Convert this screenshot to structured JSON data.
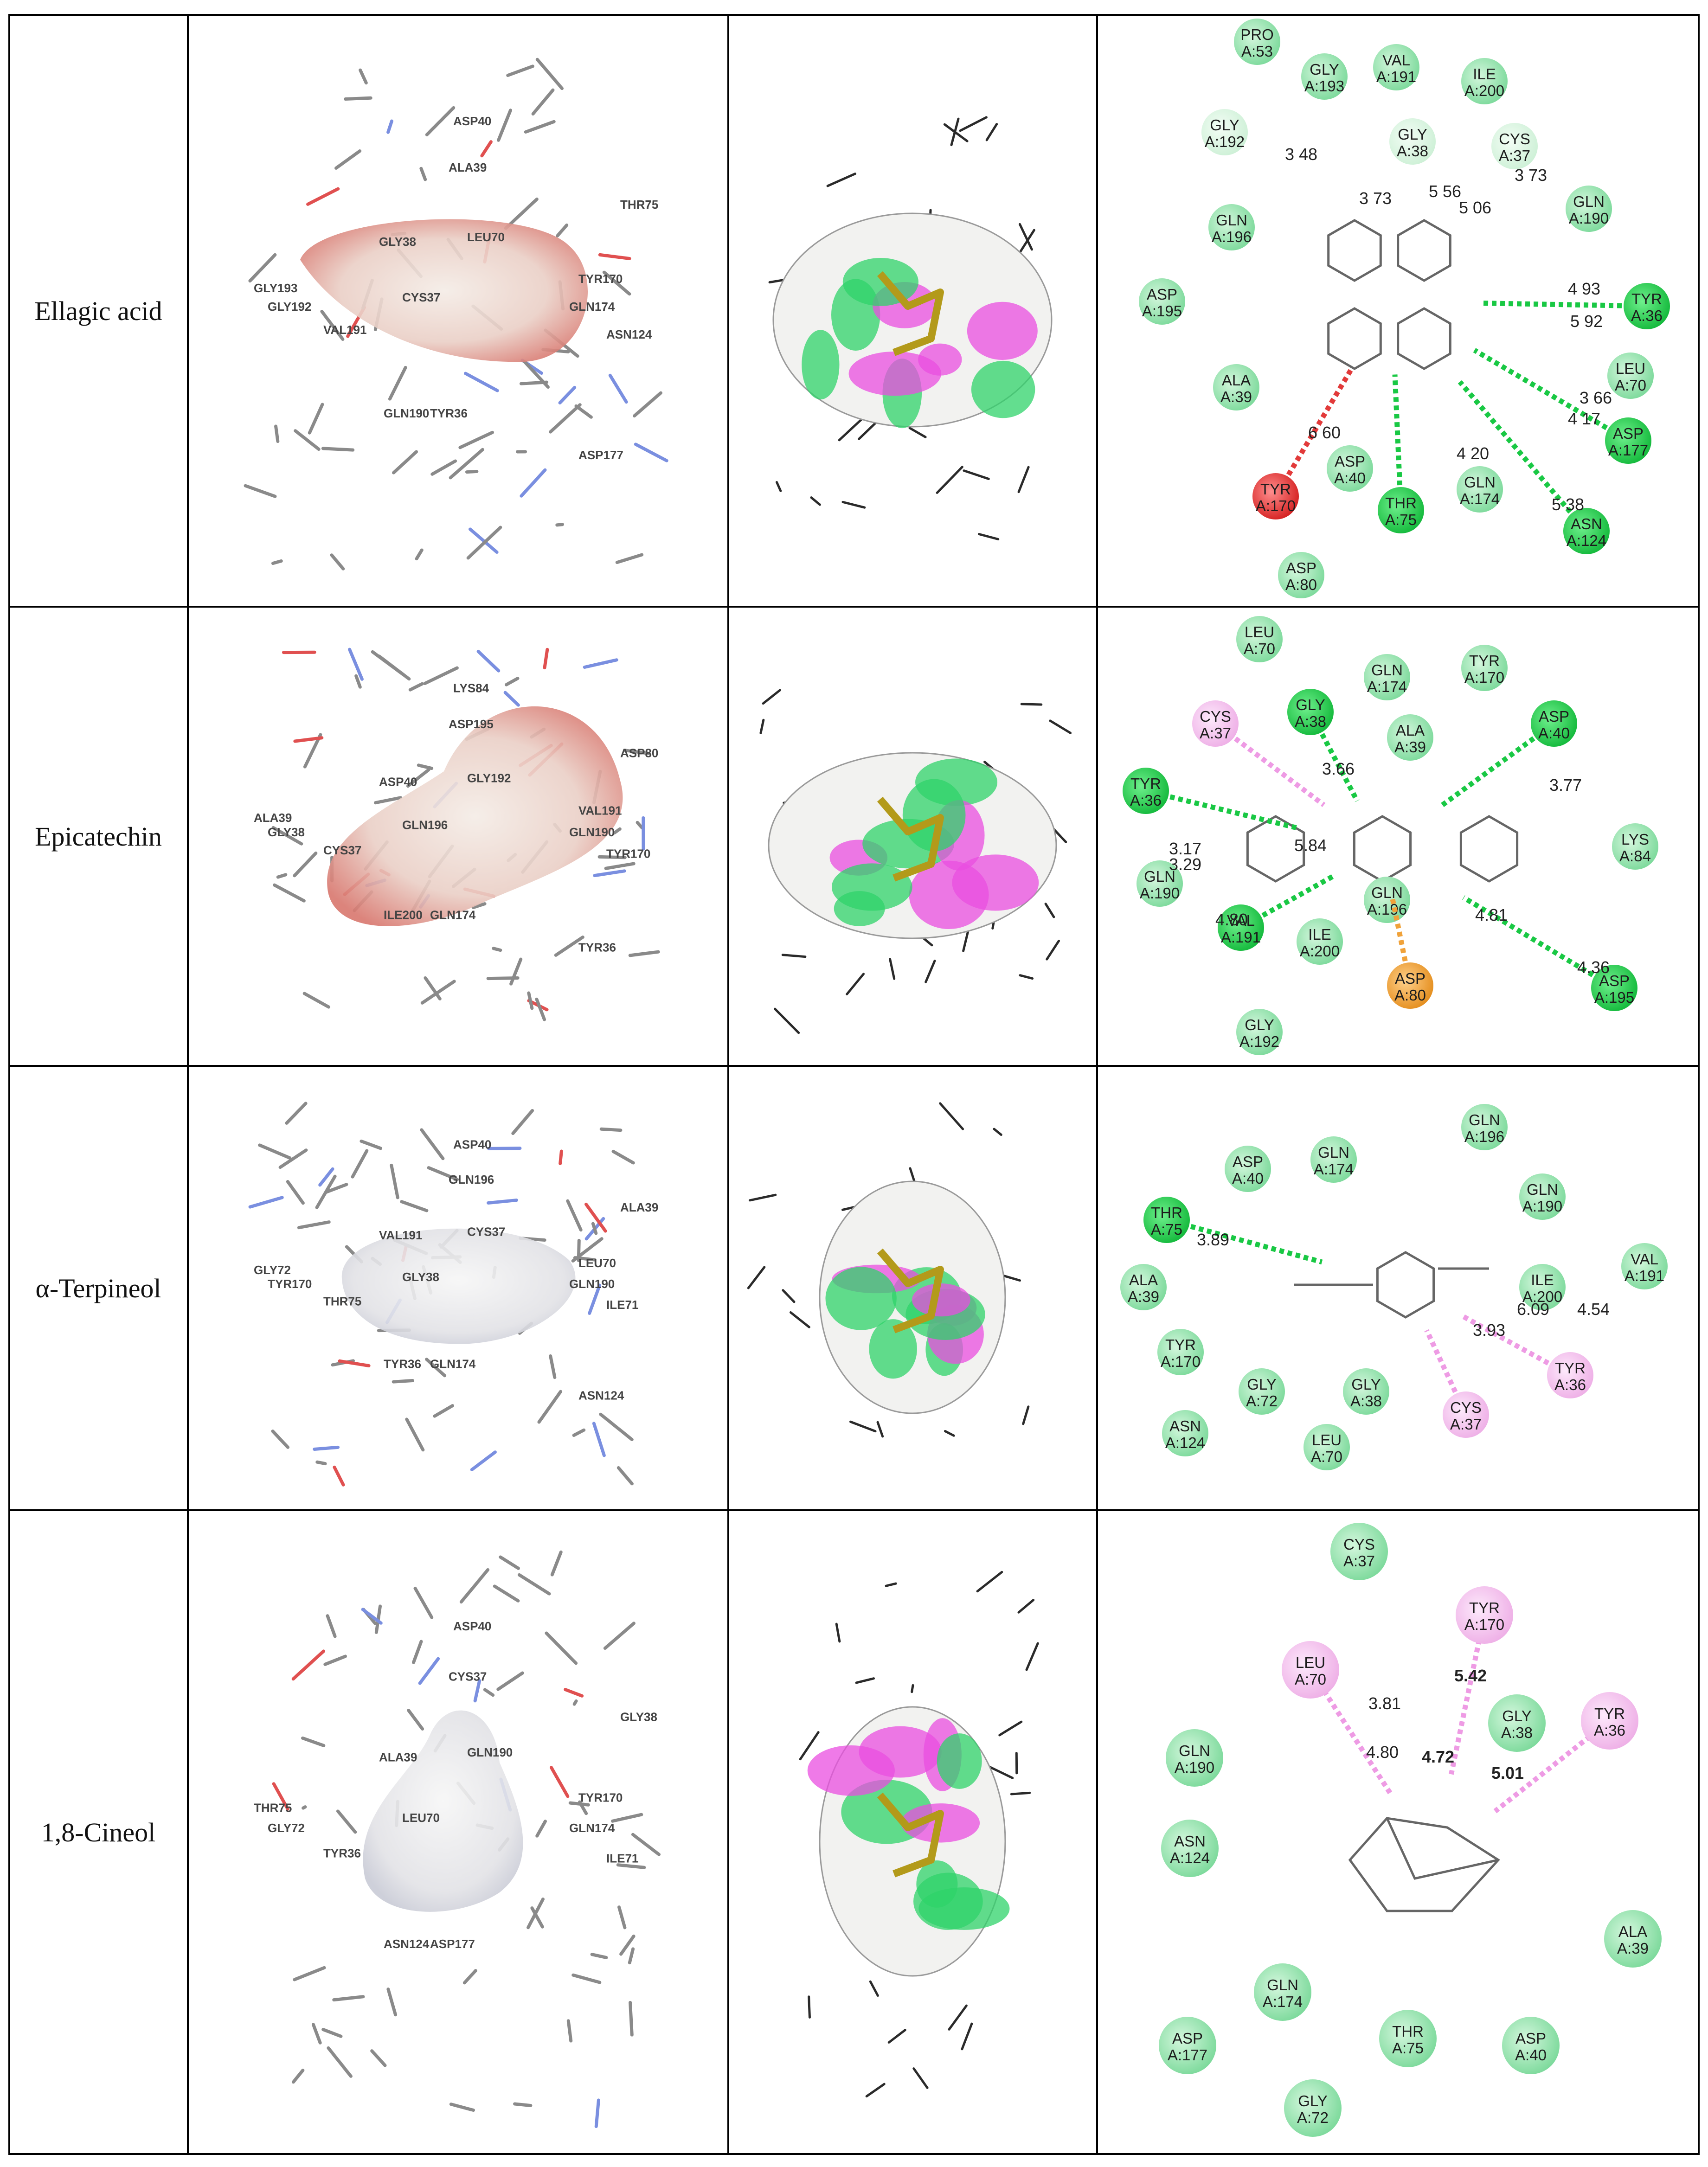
{
  "rows": [
    {
      "compound": "Ellagic acid",
      "labels3d": [
        "ASP40",
        "ALA39",
        "THR75",
        "GLY38",
        "LEU70",
        "CYS37",
        "TYR170",
        "GLY193",
        "GLY192",
        "VAL191",
        "ASN124",
        "GLN174",
        "GLN190",
        "TYR36",
        "ASP177"
      ],
      "residues": [
        {
          "name": "PRO",
          "pos": "A:53",
          "type": "vdw"
        },
        {
          "name": "VAL",
          "pos": "A:191",
          "type": "vdw"
        },
        {
          "name": "ILE",
          "pos": "A:200",
          "type": "vdw"
        },
        {
          "name": "GLY",
          "pos": "A:193",
          "type": "vdw"
        },
        {
          "name": "GLY",
          "pos": "A:192",
          "type": "carbonhb"
        },
        {
          "name": "GLY",
          "pos": "A:38",
          "type": "carbonhb"
        },
        {
          "name": "CYS",
          "pos": "A:37",
          "type": "carbonhb"
        },
        {
          "name": "GLN",
          "pos": "A:190",
          "type": "vdw"
        },
        {
          "name": "GLN",
          "pos": "A:196",
          "type": "vdw"
        },
        {
          "name": "TYR",
          "pos": "A:36",
          "type": "hbond"
        },
        {
          "name": "ASP",
          "pos": "A:195",
          "type": "vdw"
        },
        {
          "name": "LEU",
          "pos": "A:70",
          "type": "vdw"
        },
        {
          "name": "ALA",
          "pos": "A:39",
          "type": "vdw"
        },
        {
          "name": "ASP",
          "pos": "A:177",
          "type": "hbond"
        },
        {
          "name": "ASP",
          "pos": "A:40",
          "type": "vdw"
        },
        {
          "name": "TYR",
          "pos": "A:170",
          "type": "unfav"
        },
        {
          "name": "THR",
          "pos": "A:75",
          "type": "hbond"
        },
        {
          "name": "GLN",
          "pos": "A:174",
          "type": "vdw"
        },
        {
          "name": "ASN",
          "pos": "A:124",
          "type": "hbond"
        },
        {
          "name": "ASP",
          "pos": "A:80",
          "type": "vdw"
        }
      ],
      "distances": [
        "3 48",
        "3 73",
        "5 56",
        "3 73",
        "5 06",
        "4 93",
        "5 92",
        "3 66",
        "4 17",
        "6 60",
        "4 20",
        "5 38"
      ]
    },
    {
      "compound": "Epicatechin",
      "labels3d": [
        "LYS84",
        "ASP195",
        "ASP80",
        "ASP40",
        "GLY192",
        "GLN196",
        "VAL191",
        "ALA39",
        "GLY38",
        "CYS37",
        "TYR170",
        "GLN190",
        "ILE200",
        "GLN174",
        "TYR36"
      ],
      "residues": [
        {
          "name": "LEU",
          "pos": "A:70",
          "type": "vdw"
        },
        {
          "name": "GLN",
          "pos": "A:174",
          "type": "vdw"
        },
        {
          "name": "TYR",
          "pos": "A:170",
          "type": "vdw"
        },
        {
          "name": "CYS",
          "pos": "A:37",
          "type": "pialkyl"
        },
        {
          "name": "GLY",
          "pos": "A:38",
          "type": "hbond"
        },
        {
          "name": "ALA",
          "pos": "A:39",
          "type": "vdw"
        },
        {
          "name": "ASP",
          "pos": "A:40",
          "type": "hbond"
        },
        {
          "name": "TYR",
          "pos": "A:36",
          "type": "hbond"
        },
        {
          "name": "LYS",
          "pos": "A:84",
          "type": "vdw"
        },
        {
          "name": "GLN",
          "pos": "A:190",
          "type": "vdw"
        },
        {
          "name": "GLN",
          "pos": "A:196",
          "type": "vdw"
        },
        {
          "name": "VAL",
          "pos": "A:191",
          "type": "hbond"
        },
        {
          "name": "ILE",
          "pos": "A:200",
          "type": "vdw"
        },
        {
          "name": "ASP",
          "pos": "A:80",
          "type": "anion"
        },
        {
          "name": "ASP",
          "pos": "A:195",
          "type": "hbond"
        },
        {
          "name": "GLY",
          "pos": "A:192",
          "type": "vdw"
        }
      ],
      "distances": [
        "3.66",
        "3.77",
        "5.84",
        "3.17",
        "3.29",
        "4.80",
        "4.81",
        "4.36"
      ]
    },
    {
      "compound": "α-Terpineol",
      "labels3d": [
        "ASP40",
        "GLN196",
        "ALA39",
        "VAL191",
        "CYS37",
        "GLY38",
        "LEU70",
        "GLY72",
        "TYR170",
        "THR75",
        "ILE71",
        "GLN190",
        "TYR36",
        "GLN174",
        "ASN124"
      ],
      "residues": [
        {
          "name": "GLN",
          "pos": "A:196",
          "type": "vdw"
        },
        {
          "name": "ASP",
          "pos": "A:40",
          "type": "vdw"
        },
        {
          "name": "GLN",
          "pos": "A:174",
          "type": "vdw"
        },
        {
          "name": "THR",
          "pos": "A:75",
          "type": "hbond"
        },
        {
          "name": "GLN",
          "pos": "A:190",
          "type": "vdw"
        },
        {
          "name": "VAL",
          "pos": "A:191",
          "type": "vdw"
        },
        {
          "name": "ALA",
          "pos": "A:39",
          "type": "vdw"
        },
        {
          "name": "ILE",
          "pos": "A:200",
          "type": "vdw"
        },
        {
          "name": "TYR",
          "pos": "A:170",
          "type": "vdw"
        },
        {
          "name": "TYR",
          "pos": "A:36",
          "type": "pialkyl"
        },
        {
          "name": "GLY",
          "pos": "A:72",
          "type": "vdw"
        },
        {
          "name": "GLY",
          "pos": "A:38",
          "type": "vdw"
        },
        {
          "name": "CYS",
          "pos": "A:37",
          "type": "pialkyl"
        },
        {
          "name": "ASN",
          "pos": "A:124",
          "type": "vdw"
        },
        {
          "name": "LEU",
          "pos": "A:70",
          "type": "vdw"
        }
      ],
      "distances": [
        "3.89",
        "6.09",
        "4.54",
        "3.93"
      ]
    },
    {
      "compound": "1,8-Cineol",
      "labels3d": [
        "ASP40",
        "CYS37",
        "GLY38",
        "ALA39",
        "GLN190",
        "LEU70",
        "TYR170",
        "THR75",
        "GLY72",
        "TYR36",
        "ILE71",
        "GLN174",
        "ASN124",
        "ASP177"
      ],
      "residues": [
        {
          "name": "CYS",
          "pos": "A:37",
          "type": "vdw"
        },
        {
          "name": "TYR",
          "pos": "A:170",
          "type": "pialkyl"
        },
        {
          "name": "LEU",
          "pos": "A:70",
          "type": "pialkyl"
        },
        {
          "name": "GLY",
          "pos": "A:38",
          "type": "vdw"
        },
        {
          "name": "TYR",
          "pos": "A:36",
          "type": "pialkyl"
        },
        {
          "name": "GLN",
          "pos": "A:190",
          "type": "vdw"
        },
        {
          "name": "ASN",
          "pos": "A:124",
          "type": "vdw"
        },
        {
          "name": "ALA",
          "pos": "A:39",
          "type": "vdw"
        },
        {
          "name": "GLN",
          "pos": "A:174",
          "type": "vdw"
        },
        {
          "name": "ASP",
          "pos": "A:177",
          "type": "vdw"
        },
        {
          "name": "THR",
          "pos": "A:75",
          "type": "vdw"
        },
        {
          "name": "ASP",
          "pos": "A:40",
          "type": "vdw"
        },
        {
          "name": "GLY",
          "pos": "A:72",
          "type": "vdw"
        }
      ],
      "distances": [
        "5.42",
        "3.81",
        "4.80",
        "4.72",
        "5.01"
      ]
    }
  ],
  "colors": {
    "vdw": "#8fe3a8",
    "hbond": "#1fd04a",
    "carbonhb": "#d6f5de",
    "pialkyl": "#f5c6f0",
    "unfav": "#e23a3a",
    "anion": "#f0a23a",
    "surface_pink": "#e94ee0",
    "surface_green": "#2fd36a",
    "ligand": "#b39a1a"
  }
}
